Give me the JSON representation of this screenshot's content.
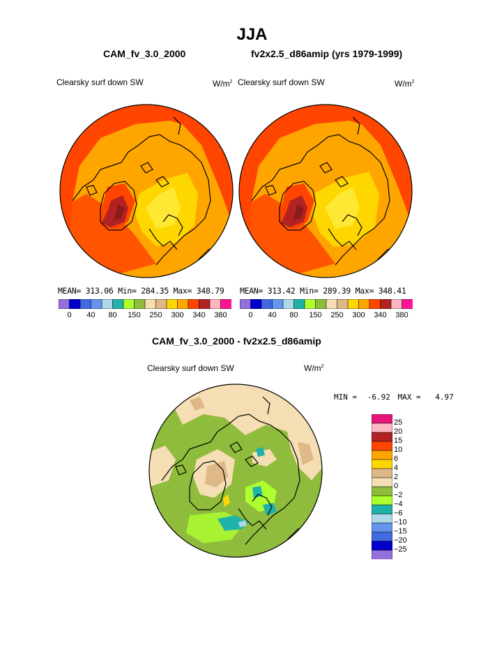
{
  "page": {
    "title": "JJA",
    "left_case": "CAM_fv_3.0_2000",
    "right_case": "fv2x2.5_d86amip (yrs 1979-1999)",
    "diff_title": "CAM_fv_3.0_2000 - fv2x2.5_d86amip"
  },
  "panels": [
    {
      "variable": "Clearsky surf down SW",
      "units_base": "W/m",
      "units_exp": "2",
      "stats": "MEAN= 313.06  Min= 284.35  Max= 348.79"
    },
    {
      "variable": "Clearsky surf down SW",
      "units_base": "W/m",
      "units_exp": "2",
      "stats": "MEAN= 313.42  Min= 289.39  Max= 348.41"
    }
  ],
  "diff": {
    "variable": "Clearsky surf down SW",
    "units_base": "W/m",
    "units_exp": "2",
    "min_label": "MIN =",
    "min_value": "-6.92",
    "max_label": "MAX =",
    "max_value": "4.97"
  },
  "chart_data": [
    {
      "type": "heatmap",
      "projection": "north-polar-stereographic",
      "title": "Clearsky surf down SW",
      "units": "W/m2",
      "stats": {
        "mean": 313.06,
        "min": 284.35,
        "max": 348.79
      },
      "colorbar": {
        "orientation": "horizontal",
        "levels": [
          0,
          40,
          80,
          150,
          250,
          300,
          340,
          380
        ],
        "colors": [
          "#9370db",
          "#0000cd",
          "#4169e1",
          "#6495ed",
          "#add8e6",
          "#20b2aa",
          "#adff2f",
          "#8fbc3c",
          "#f5deb3",
          "#deb887",
          "#ffd700",
          "#ffa500",
          "#ff4500",
          "#b22222",
          "#ffb6c1",
          "#ff1493"
        ]
      }
    },
    {
      "type": "heatmap",
      "projection": "north-polar-stereographic",
      "title": "Clearsky surf down SW",
      "units": "W/m2",
      "stats": {
        "mean": 313.42,
        "min": 289.39,
        "max": 348.41
      },
      "colorbar": {
        "orientation": "horizontal",
        "levels": [
          0,
          40,
          80,
          150,
          250,
          300,
          340,
          380
        ],
        "colors": [
          "#9370db",
          "#0000cd",
          "#4169e1",
          "#6495ed",
          "#add8e6",
          "#20b2aa",
          "#adff2f",
          "#8fbc3c",
          "#f5deb3",
          "#deb887",
          "#ffd700",
          "#ffa500",
          "#ff4500",
          "#b22222",
          "#ffb6c1",
          "#ff1493"
        ]
      }
    },
    {
      "type": "heatmap",
      "projection": "north-polar-stereographic",
      "title": "Clearsky surf down SW",
      "units": "W/m2",
      "stats": {
        "min": -6.92,
        "max": 4.97
      },
      "colorbar": {
        "orientation": "vertical",
        "levels": [
          "25",
          "20",
          "15",
          "10",
          "6",
          "4",
          "2",
          "0",
          "−2",
          "−4",
          "−6",
          "−10",
          "−15",
          "−20",
          "−25"
        ],
        "colors": [
          "#e7157b",
          "#ffb6c1",
          "#b22222",
          "#ff4500",
          "#ffa500",
          "#ffd700",
          "#deb887",
          "#f5deb3",
          "#8fbc3c",
          "#adff2f",
          "#20b2aa",
          "#add8e6",
          "#6495ed",
          "#4169e1",
          "#0000cd",
          "#9370db"
        ]
      }
    }
  ]
}
